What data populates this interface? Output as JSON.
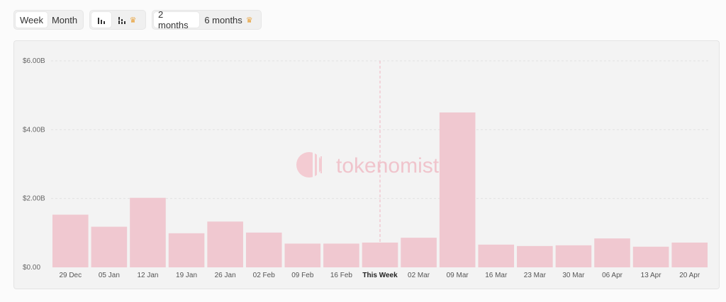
{
  "toolbar": {
    "period": {
      "week": "Week",
      "month": "Month"
    },
    "chart_type": {
      "bar_icon": "bar-chart-icon",
      "stacked_icon": "stacked-bar-chart-icon",
      "crown_icon": "crown-icon"
    },
    "range": {
      "two_months": "2 months",
      "six_months": "6 months"
    }
  },
  "watermark": "tokenomist",
  "colors": {
    "bar": "#f0c8d0",
    "gridline": "#e2e2e2",
    "current_line": "#f0b6c2",
    "crown": "#e8a13a"
  },
  "chart_data": {
    "type": "bar",
    "title": "",
    "xlabel": "",
    "ylabel": "",
    "categories": [
      "29 Dec",
      "05 Jan",
      "12 Jan",
      "19 Jan",
      "26 Jan",
      "02 Feb",
      "09 Feb",
      "16 Feb",
      "This Week",
      "02 Mar",
      "09 Mar",
      "16 Mar",
      "23 Mar",
      "30 Mar",
      "06 Apr",
      "13 Apr",
      "20 Apr"
    ],
    "values": [
      1.53,
      1.18,
      2.02,
      0.99,
      1.33,
      1.01,
      0.69,
      0.69,
      0.72,
      0.86,
      4.5,
      0.66,
      0.62,
      0.64,
      0.84,
      0.6,
      0.72
    ],
    "current_category": "This Week",
    "ylim": [
      0,
      6
    ],
    "yticks": [
      0,
      2,
      4,
      6
    ],
    "ytick_labels": [
      "$0.00",
      "$2.00B",
      "$4.00B",
      "$6.00B"
    ],
    "grid": true,
    "legend": "none"
  }
}
